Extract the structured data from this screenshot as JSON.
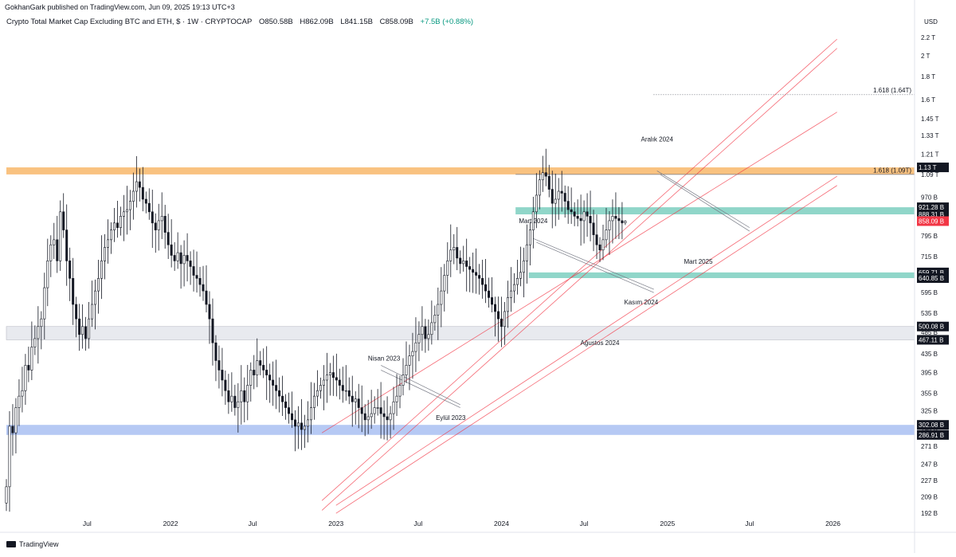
{
  "publisher": "GokhanGark published on TradingView.com, Jun 09, 2025 19:13 UTC+3",
  "legend": {
    "symbol": "Crypto Total Market Cap Excluding BTC and ETH, $ · 1W · CRYPTOCAP",
    "open": "O850.58B",
    "high": "H862.09B",
    "low": "L841.15B",
    "close": "C858.09B",
    "change": "+7.5B (+0.88%)"
  },
  "footer": "TradingView",
  "colors": {
    "up": "#131722",
    "down": "#131722",
    "channel": "#f23645",
    "zone_orange": "#f8b76a",
    "zone_teal": "#7dcfc0",
    "zone_grey": "#e6e8ee",
    "zone_blue": "#a9bff2",
    "price_badge": "#f23645"
  },
  "chart_data": {
    "type": "candlestick",
    "title": "Crypto Total Market Cap Excluding BTC and ETH, $ · 1W · CRYPTOCAP",
    "currency": "USD",
    "y_scale": "log",
    "y_ticks": [
      "2.2 T",
      "2 T",
      "1.8 T",
      "1.6 T",
      "1.45 T",
      "1.33 T",
      "1.21 T",
      "1.09 T",
      "970 B",
      "871 B",
      "795 B",
      "715 B",
      "655 B",
      "595 B",
      "535 B",
      "485 B",
      "435 B",
      "395 B",
      "355 B",
      "325 B",
      "295 B",
      "271 B",
      "247 B",
      "227 B",
      "209 B",
      "192 B"
    ],
    "y_tick_values": [
      2200,
      2000,
      1800,
      1600,
      1450,
      1330,
      1210,
      1090,
      970,
      871,
      795,
      715,
      655,
      595,
      535,
      485,
      435,
      395,
      355,
      325,
      295,
      271,
      247,
      227,
      209,
      192
    ],
    "x_ticks": [
      "Jul",
      "2022",
      "Jul",
      "2023",
      "Jul",
      "2024",
      "Jul",
      "2025",
      "Jul",
      "2026"
    ],
    "x_tick_dates": [
      "2021-07-01",
      "2022-01-01",
      "2022-07-01",
      "2023-01-01",
      "2023-07-01",
      "2024-01-01",
      "2024-07-01",
      "2025-01-01",
      "2025-07-01",
      "2026-01-01"
    ],
    "weekly_closes": {
      "start_date": "2021-01-04",
      "values": [
        220,
        300,
        290,
        330,
        350,
        360,
        410,
        400,
        450,
        470,
        500,
        520,
        610,
        700,
        760,
        780,
        700,
        900,
        820,
        700,
        640,
        560,
        520,
        480,
        500,
        470,
        520,
        560,
        600,
        640,
        700,
        750,
        780,
        820,
        850,
        830,
        880,
        900,
        910,
        950,
        1000,
        1050,
        1020,
        960,
        940,
        900,
        850,
        820,
        860,
        880,
        810,
        760,
        720,
        700,
        730,
        690,
        720,
        700,
        680,
        650,
        640,
        620,
        600,
        560,
        520,
        460,
        420,
        400,
        380,
        360,
        340,
        350,
        330,
        340,
        360,
        340,
        370,
        400,
        390,
        420,
        410,
        400,
        390,
        380,
        370,
        360,
        350,
        340,
        330,
        320,
        310,
        300,
        305,
        295,
        300,
        310,
        330,
        350,
        360,
        370,
        380,
        390,
        395,
        385,
        380,
        370,
        360,
        360,
        350,
        340,
        345,
        330,
        320,
        310,
        315,
        320,
        330,
        330,
        320,
        315,
        310,
        320,
        340,
        350,
        370,
        390,
        410,
        430,
        440,
        460,
        480,
        500,
        470,
        480,
        510,
        530,
        560,
        600,
        650,
        700,
        740,
        750,
        710,
        690,
        700,
        680,
        670,
        660,
        650,
        640,
        620,
        600,
        580,
        560,
        540,
        520,
        500,
        540,
        580,
        600,
        620,
        640,
        660,
        700,
        760,
        820,
        900,
        980,
        1060,
        1100,
        1080,
        1010,
        940,
        960,
        1000,
        990,
        950,
        910,
        900,
        880,
        870,
        860,
        900,
        880,
        850,
        800,
        760,
        740,
        780,
        820,
        860,
        880,
        870,
        860,
        850,
        858
      ],
      "open_last": 850.58,
      "high_last": 862.09,
      "low_last": 841.15,
      "close_last": 858.09
    },
    "price_labels": [
      {
        "text": "1.13 T",
        "value": 1130,
        "style": "dark"
      },
      {
        "text": "921.28 B",
        "value": 921.28,
        "style": "dark"
      },
      {
        "text": "888.31 B",
        "value": 888.31,
        "style": "dark"
      },
      {
        "text": "858.09 B",
        "value": 858.09,
        "style": "red"
      },
      {
        "text": "659.71 B",
        "value": 659.71,
        "style": "dark"
      },
      {
        "text": "640.85 B",
        "value": 640.85,
        "style": "dark"
      },
      {
        "text": "500.08 B",
        "value": 500.08,
        "style": "dark"
      },
      {
        "text": "467.11 B",
        "value": 467.11,
        "style": "dark"
      },
      {
        "text": "302.08 B",
        "value": 302.08,
        "style": "dark"
      },
      {
        "text": "286.91 B",
        "value": 286.91,
        "style": "dark"
      }
    ],
    "zones": [
      {
        "name": "orange",
        "low": 1090,
        "high": 1130,
        "from": "2021-01-01",
        "to": "2026-06-30"
      },
      {
        "name": "teal-upper",
        "low": 888.31,
        "high": 921.28,
        "from": "2024-02-01",
        "to": "2026-06-30"
      },
      {
        "name": "teal-lower",
        "low": 640.85,
        "high": 659.71,
        "from": "2024-03-01",
        "to": "2026-06-30"
      },
      {
        "name": "grey",
        "low": 467.11,
        "high": 500.08,
        "from": "2021-01-01",
        "to": "2026-06-30"
      },
      {
        "name": "blue",
        "low": 286.91,
        "high": 302.08,
        "from": "2021-01-01",
        "to": "2026-06-30"
      }
    ],
    "annotations": [
      {
        "text": "Aralık 2024",
        "date": "2024-12-09",
        "value": 1290
      },
      {
        "text": "Mart 2024",
        "date": "2024-03-11",
        "value": 850
      },
      {
        "text": "Nisan 2023",
        "date": "2023-04-17",
        "value": 420
      },
      {
        "text": "Eylül 2023",
        "date": "2023-09-11",
        "value": 310
      },
      {
        "text": "Ağustos 2024",
        "date": "2024-08-05",
        "value": 455
      },
      {
        "text": "Kasım 2024",
        "date": "2024-11-04",
        "value": 560
      },
      {
        "text": "Mart 2025",
        "date": "2025-03-10",
        "value": 690
      },
      {
        "text": "1.618 (1.64T)",
        "date": "2026-01-01",
        "value": 1660
      },
      {
        "text": "1.618 (1.09T)",
        "date": "2026-01-01",
        "value": 1100
      }
    ]
  }
}
